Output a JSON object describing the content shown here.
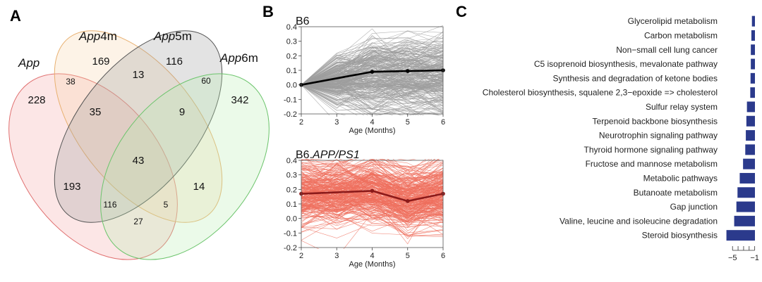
{
  "panels": {
    "A": "A",
    "B": "B",
    "C": "C"
  },
  "venn": {
    "sets": [
      {
        "name_italic": "App",
        "name_suffix": ""
      },
      {
        "name_italic": "App",
        "name_suffix": "4m"
      },
      {
        "name_italic": "App",
        "name_suffix": "5m"
      },
      {
        "name_italic": "App",
        "name_suffix": "6m"
      }
    ],
    "regions": [
      {
        "id": "app-only",
        "value": "228"
      },
      {
        "id": "app4m-only",
        "value": "169"
      },
      {
        "id": "app5m-only",
        "value": "116"
      },
      {
        "id": "app6m-only",
        "value": "342"
      },
      {
        "id": "app-app4m",
        "value": "38"
      },
      {
        "id": "app4m-app5m",
        "value": "13"
      },
      {
        "id": "app5m-app6m",
        "value": "60"
      },
      {
        "id": "app-app4m-app5m",
        "value": "35"
      },
      {
        "id": "app4m-app5m-app6m",
        "value": "9"
      },
      {
        "id": "all-four",
        "value": "43"
      },
      {
        "id": "app-app5m",
        "value": "193"
      },
      {
        "id": "app4m-app6m",
        "value": "14"
      },
      {
        "id": "app-app5m-app6m",
        "value": "116"
      },
      {
        "id": "app-app4m-app6m",
        "value": "5"
      },
      {
        "id": "app-app6m",
        "value": "27"
      }
    ],
    "colors": {
      "app": "#f4a6a6",
      "app4m": "#f9d4a8",
      "app5m": "#9a9a9a",
      "app6m": "#b6ecb0"
    }
  },
  "chart_data": [
    {
      "type": "line",
      "title": "B6",
      "xlabel": "Age (Months)",
      "ylabel": "",
      "x": [
        2,
        3,
        4,
        5,
        6
      ],
      "xticks": [
        "2",
        "3",
        "4",
        "5",
        "6"
      ],
      "ylim": [
        -0.2,
        0.4
      ],
      "yticks": [
        "-0.2",
        "-0.1",
        "0.0",
        "0.1",
        "0.2",
        "0.3",
        "0.4"
      ],
      "series": [
        {
          "name": "mean",
          "x": [
            2,
            4,
            5,
            6
          ],
          "values": [
            0.0,
            0.09,
            0.095,
            0.1
          ]
        }
      ],
      "background_lines_color": "#9e9e9e",
      "mean_color": "#000000"
    },
    {
      "type": "line",
      "title": "B6.",
      "title_italic": "APP/PS1",
      "xlabel": "Age (Months)",
      "ylabel": "",
      "x": [
        2,
        3,
        4,
        5,
        6
      ],
      "xticks": [
        "2",
        "3",
        "4",
        "5",
        "6"
      ],
      "ylim": [
        -0.2,
        0.4
      ],
      "yticks": [
        "-0.2",
        "-0.1",
        "0.0",
        "0.1",
        "0.2",
        "0.3",
        "0.4"
      ],
      "series": [
        {
          "name": "mean",
          "x": [
            2,
            4,
            5,
            6
          ],
          "values": [
            0.17,
            0.19,
            0.12,
            0.17
          ]
        }
      ],
      "background_lines_color": "#ef6f5e",
      "mean_color": "#8b1a1a"
    },
    {
      "type": "bar",
      "orientation": "horizontal",
      "categories": [
        "Glycerolipid metabolism",
        "Carbon metabolism",
        "Non−small cell lung cancer",
        "C5 isoprenoid biosynthesis, mevalonate pathway",
        "Synthesis and degradation of ketone bodies",
        "Cholesterol biosynthesis, squalene 2,3−epoxide => cholesterol",
        "Sulfur relay system",
        "Terpenoid backbone biosynthesis",
        "Neurotrophin signaling pathway",
        "Thyroid hormone signaling pathway",
        "Fructose and mannose metabolism",
        "Metabolic pathways",
        "Butanoate metabolism",
        "Gap junction",
        "Valine, leucine and isoleucine degradation",
        "Steroid biosynthesis"
      ],
      "values": [
        -1.5,
        -1.6,
        -1.7,
        -1.7,
        -1.75,
        -1.8,
        -2.4,
        -2.5,
        -2.6,
        -2.7,
        -3.1,
        -3.7,
        -4.1,
        -4.3,
        -4.7,
        -6.1
      ],
      "xlim": [
        -6.3,
        -0.7
      ],
      "xticks": [
        "−5",
        "−1"
      ],
      "xtick_values": [
        -5,
        -1
      ],
      "bar_color": "#2b3a8c"
    }
  ]
}
